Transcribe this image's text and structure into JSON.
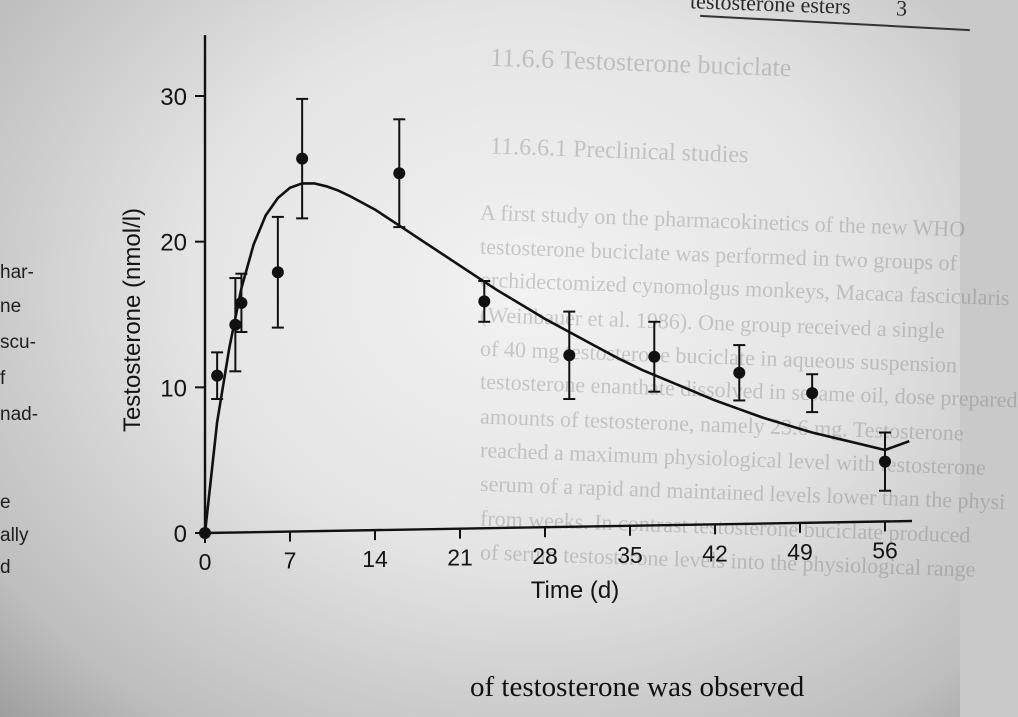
{
  "header": {
    "running_title": "testosterone esters",
    "page_number": "3"
  },
  "background_text": [
    "11.6.6 Testosterone buciclate",
    "11.6.6.1 Preclinical studies",
    "A first study on the pharmacokinetics of the new WHO",
    "testosterone buciclate was performed in two groups of",
    "orchidectomized cynomolgus monkeys, Macaca fascicularis",
    "(Weinbauer et al. 1986). One group received a single",
    "of 40 mg testosterone buciclate in aqueous suspension",
    "testosterone enanthate dissolved in sesame oil, dose prepared",
    "amounts of testosterone, namely 23.6 mg. Testosterone",
    "reached a maximum physiological level with testosterone",
    "serum of a rapid and maintained levels lower than the physi",
    "from weeks. In contrast testosterone buciclate produced",
    "of serum testosterone levels into the physiological range"
  ],
  "margin_fragments": [
    "har-",
    "ne",
    "scu-",
    "f",
    "nad-",
    "e",
    "ally",
    "d"
  ],
  "bottom_line": "of testosterone was observed",
  "chart_data": {
    "type": "scatter",
    "title": "",
    "xlabel": "Time (d)",
    "ylabel": "Testosterone (nmol/l)",
    "xlim": [
      0,
      58
    ],
    "ylim": [
      0,
      35
    ],
    "xticks": [
      0,
      7,
      14,
      21,
      28,
      35,
      42,
      49,
      56
    ],
    "yticks": [
      0,
      10,
      20,
      30
    ],
    "grid": false,
    "series": [
      {
        "kind": "points_with_error_bars",
        "x": [
          0,
          1,
          2.5,
          3,
          6,
          8,
          16,
          23,
          30,
          37,
          44,
          50,
          56
        ],
        "y": [
          0,
          10.8,
          14.3,
          15.8,
          17.9,
          25.7,
          24.7,
          15.9,
          12.2,
          12.1,
          11.0,
          9.6,
          4.9
        ],
        "err": [
          0,
          1.6,
          3.2,
          2.0,
          3.8,
          4.1,
          3.7,
          1.4,
          3.0,
          2.4,
          1.9,
          1.3,
          2.0
        ]
      },
      {
        "kind": "fitted_curve",
        "x": [
          0,
          1,
          2,
          3,
          4,
          5,
          6,
          7,
          8,
          9,
          10,
          11,
          12,
          14,
          16,
          18,
          20,
          22,
          24,
          26,
          28,
          30,
          32,
          34,
          36,
          38,
          40,
          42,
          44,
          46,
          48,
          50,
          52,
          54,
          56,
          58
        ],
        "y": [
          0,
          7.6,
          12.7,
          16.8,
          19.8,
          21.8,
          23.0,
          23.7,
          24.0,
          24.0,
          23.8,
          23.5,
          23.1,
          22.2,
          21.1,
          20.0,
          18.9,
          17.8,
          16.7,
          15.7,
          14.7,
          13.8,
          12.9,
          12.0,
          11.2,
          10.5,
          9.8,
          9.1,
          8.5,
          7.9,
          7.4,
          6.9,
          6.5,
          6.1,
          5.7,
          6.3
        ]
      }
    ]
  }
}
